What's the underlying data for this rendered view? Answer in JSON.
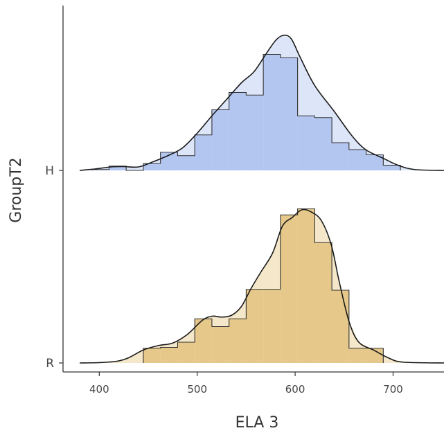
{
  "chart_data": {
    "type": "ridgeline-histogram-density",
    "xlabel": "ELA 3",
    "ylabel": "GroupT2",
    "xlim": [
      363,
      752
    ],
    "x_ticks": [
      400,
      500,
      600,
      700
    ],
    "x_tick_labels": [
      "400",
      "500",
      "600",
      "700"
    ],
    "bin_width": 17.5,
    "grid": false,
    "legend": "none",
    "series": [
      {
        "name": "H",
        "fill": "#b3c6f0",
        "bin_starts": [
          392.5,
          410,
          427.5,
          445,
          462.5,
          480,
          497.5,
          515,
          532.5,
          550,
          567.5,
          585,
          602.5,
          620,
          637.5,
          655,
          672.5,
          690
        ],
        "values": [
          0.005,
          0.025,
          0.0,
          0.04,
          0.105,
          0.085,
          0.205,
          0.35,
          0.45,
          0.435,
          0.67,
          0.65,
          0.315,
          0.305,
          0.16,
          0.12,
          0.09,
          0.03
        ],
        "density": [
          [
            380,
            0
          ],
          [
            395,
            0.008
          ],
          [
            412,
            0.02
          ],
          [
            425,
            0.022
          ],
          [
            440,
            0.02
          ],
          [
            455,
            0.05
          ],
          [
            470,
            0.085
          ],
          [
            485,
            0.13
          ],
          [
            500,
            0.215
          ],
          [
            515,
            0.315
          ],
          [
            530,
            0.41
          ],
          [
            545,
            0.505
          ],
          [
            558,
            0.57
          ],
          [
            570,
            0.67
          ],
          [
            580,
            0.75
          ],
          [
            588,
            0.78
          ],
          [
            596,
            0.76
          ],
          [
            605,
            0.655
          ],
          [
            620,
            0.49
          ],
          [
            640,
            0.34
          ],
          [
            658,
            0.2
          ],
          [
            672,
            0.12
          ],
          [
            690,
            0.07
          ],
          [
            705,
            0.03
          ],
          [
            722,
            0.005
          ],
          [
            752,
            0
          ]
        ]
      },
      {
        "name": "R",
        "fill": "#e6c98a",
        "bin_starts": [
          445,
          462.5,
          480,
          497.5,
          515,
          532.5,
          550,
          567.5,
          585,
          602.5,
          620,
          637.5,
          655,
          672.5
        ],
        "values": [
          0.085,
          0.09,
          0.12,
          0.255,
          0.21,
          0.255,
          0.425,
          0.425,
          0.855,
          0.89,
          0.695,
          0.42,
          0.085,
          0.085
        ],
        "density": [
          [
            380,
            0
          ],
          [
            400,
            0.002
          ],
          [
            418,
            0.01
          ],
          [
            430,
            0.03
          ],
          [
            445,
            0.075
          ],
          [
            460,
            0.1
          ],
          [
            475,
            0.115
          ],
          [
            490,
            0.165
          ],
          [
            505,
            0.245
          ],
          [
            515,
            0.27
          ],
          [
            525,
            0.265
          ],
          [
            535,
            0.275
          ],
          [
            545,
            0.325
          ],
          [
            555,
            0.43
          ],
          [
            565,
            0.525
          ],
          [
            577,
            0.635
          ],
          [
            587,
            0.79
          ],
          [
            597,
            0.84
          ],
          [
            607,
            0.885
          ],
          [
            617,
            0.87
          ],
          [
            627,
            0.82
          ],
          [
            637,
            0.68
          ],
          [
            645,
            0.47
          ],
          [
            655,
            0.24
          ],
          [
            665,
            0.12
          ],
          [
            680,
            0.075
          ],
          [
            695,
            0.03
          ],
          [
            710,
            0.005
          ],
          [
            752,
            0
          ]
        ]
      }
    ]
  }
}
